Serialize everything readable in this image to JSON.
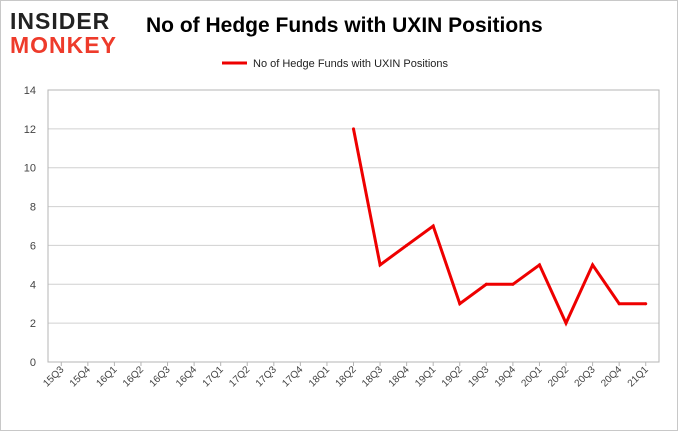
{
  "logo": {
    "line1": "INSIDER",
    "line2": "MONKEY"
  },
  "chart_data": {
    "type": "line",
    "title": "No of Hedge Funds with UXIN Positions",
    "xlabel": "",
    "ylabel": "",
    "categories": [
      "15Q3",
      "15Q4",
      "16Q1",
      "16Q2",
      "16Q3",
      "16Q4",
      "17Q1",
      "17Q2",
      "17Q3",
      "17Q4",
      "18Q1",
      "18Q2",
      "18Q3",
      "18Q4",
      "19Q1",
      "19Q2",
      "19Q3",
      "19Q4",
      "20Q1",
      "20Q2",
      "20Q3",
      "20Q4",
      "21Q1"
    ],
    "series": [
      {
        "name": "No of Hedge Funds with UXIN Positions",
        "color": "#ee0000",
        "values": [
          null,
          null,
          null,
          null,
          null,
          null,
          null,
          null,
          null,
          null,
          null,
          12,
          5,
          6,
          7,
          3,
          4,
          4,
          5,
          2,
          5,
          3,
          3
        ]
      }
    ],
    "ylim": [
      0,
      14
    ],
    "yticks": [
      0,
      2,
      4,
      6,
      8,
      10,
      12,
      14
    ],
    "grid": true,
    "legend": "top-center"
  }
}
